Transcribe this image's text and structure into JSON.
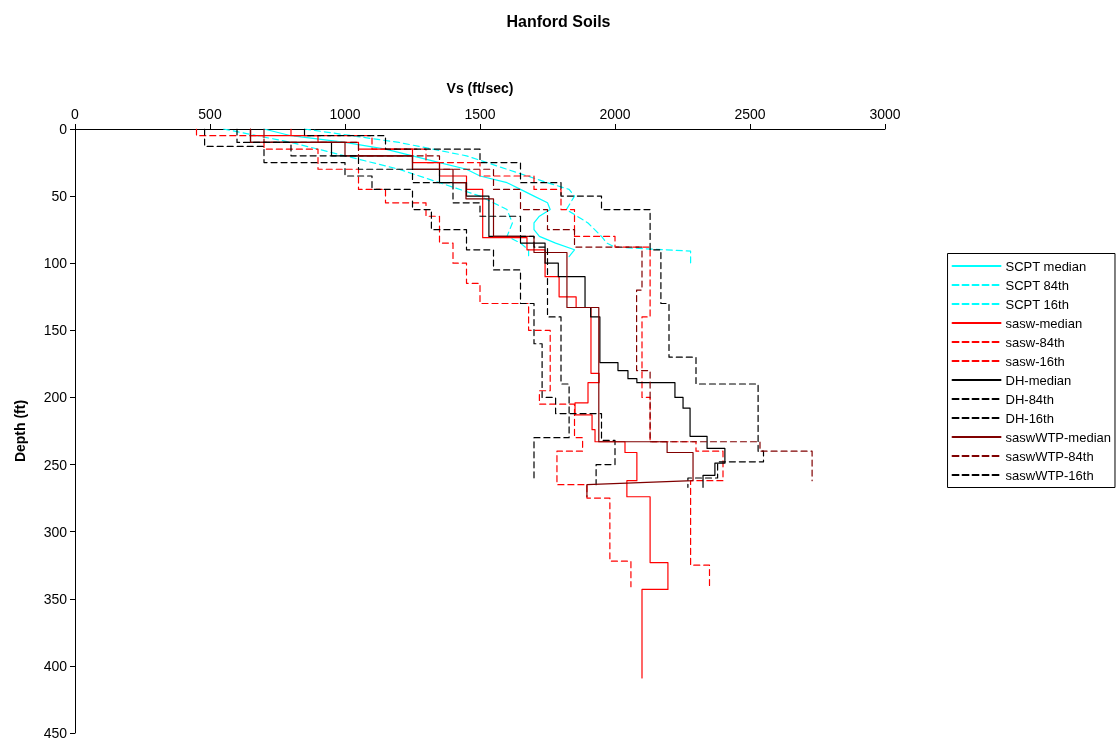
{
  "chart_data": {
    "type": "line",
    "title": "Hanford Soils",
    "xlabel": "Vs (ft/sec)",
    "ylabel": "Depth (ft)",
    "xlim": [
      0,
      3000
    ],
    "xticks": [
      0,
      500,
      1000,
      1500,
      2000,
      2500,
      3000
    ],
    "ylim": [
      450,
      0
    ],
    "yticks": [
      0,
      50,
      100,
      150,
      200,
      250,
      300,
      350,
      400,
      450
    ],
    "grid": false,
    "legend": "right",
    "marker": "none",
    "series": [
      {
        "name": "SCPT median",
        "color": "#00ffff",
        "line_style": "solid",
        "x": [
          700,
          800,
          1000,
          1150,
          1250,
          1350,
          1450,
          1500,
          1600,
          1650,
          1700,
          1750,
          1760,
          1720,
          1700,
          1700,
          1720,
          1780,
          1850,
          1830
        ],
        "values": [
          0,
          5,
          10,
          15,
          20,
          25,
          30,
          35,
          40,
          45,
          50,
          55,
          60,
          65,
          70,
          75,
          80,
          85,
          90,
          95
        ]
      },
      {
        "name": "SCPT 84th",
        "color": "#00ffff",
        "line_style": "dashed",
        "x": [
          850,
          1200,
          1450,
          1600,
          1750,
          1830,
          1850,
          1820,
          1900,
          1950,
          1970,
          2000,
          2280,
          2280
        ],
        "values": [
          0,
          10,
          20,
          30,
          40,
          45,
          50,
          60,
          70,
          80,
          85,
          88,
          91,
          100
        ]
      },
      {
        "name": "SCPT 16th",
        "color": "#00ffff",
        "line_style": "dashed",
        "x": [
          550,
          800,
          1000,
          1200,
          1350,
          1500,
          1600,
          1620,
          1600,
          1650,
          1680,
          1680
        ],
        "values": [
          0,
          10,
          20,
          30,
          40,
          50,
          60,
          70,
          80,
          85,
          90,
          97
        ]
      },
      {
        "name": "sasw-median",
        "color": "#ff0000",
        "line_style": "solid",
        "x": [
          650,
          650,
          900,
          900,
          1050,
          1050,
          1250,
          1250,
          1350,
          1350,
          1450,
          1450,
          1510,
          1510,
          1674,
          1674,
          1741,
          1741,
          1793,
          1793,
          1856,
          1856,
          1911,
          1911,
          1941,
          1941,
          1900,
          1900,
          1852,
          1852,
          1915,
          1915,
          1926,
          1926,
          2037,
          2037,
          2081,
          2081,
          2044,
          2044,
          2130,
          2130,
          2196,
          2196,
          2100,
          2100
        ],
        "values": [
          0,
          5,
          5,
          10,
          10,
          15,
          15,
          25,
          25,
          35,
          35,
          45,
          45,
          81,
          81,
          90,
          90,
          110,
          110,
          125,
          125,
          133,
          133,
          182,
          182,
          189,
          189,
          204,
          204,
          213,
          213,
          224,
          224,
          233,
          233,
          241,
          241,
          262,
          262,
          274,
          274,
          323,
          323,
          343,
          343,
          409
        ]
      },
      {
        "name": "sasw-84th",
        "color": "#ff0000",
        "line_style": "dashed",
        "x": [
          800,
          800,
          1100,
          1100,
          1300,
          1300,
          1500,
          1500,
          1700,
          1700,
          1800,
          1800,
          1850,
          1850,
          2000,
          2000,
          2130,
          2130,
          2100,
          2100,
          2130,
          2130,
          2300,
          2300,
          2400,
          2400,
          2280,
          2280,
          2350,
          2350
        ],
        "values": [
          0,
          5,
          5,
          15,
          15,
          25,
          25,
          35,
          35,
          45,
          45,
          60,
          60,
          80,
          80,
          88,
          88,
          140,
          140,
          200,
          200,
          233,
          233,
          240,
          240,
          262,
          262,
          325,
          325,
          343
        ]
      },
      {
        "name": "sasw-16th",
        "color": "#ff0000",
        "line_style": "dashed",
        "x": [
          450,
          450,
          700,
          700,
          900,
          900,
          1050,
          1050,
          1150,
          1150,
          1300,
          1300,
          1350,
          1350,
          1400,
          1400,
          1450,
          1450,
          1500,
          1500,
          1680,
          1680,
          1760,
          1760,
          1720,
          1720,
          1850,
          1850,
          1880,
          1880,
          1785,
          1785,
          1896,
          1896,
          1981,
          1981,
          2059,
          2059
        ],
        "values": [
          0,
          5,
          5,
          15,
          15,
          30,
          30,
          45,
          45,
          55,
          55,
          65,
          65,
          85,
          85,
          100,
          100,
          115,
          115,
          130,
          130,
          150,
          150,
          195,
          195,
          205,
          205,
          230,
          230,
          240,
          240,
          265,
          265,
          275,
          275,
          322,
          322,
          341
        ]
      },
      {
        "name": "DH-median",
        "color": "#000000",
        "line_style": "solid",
        "x": [
          650,
          650,
          950,
          950,
          1250,
          1250,
          1350,
          1350,
          1450,
          1450,
          1533,
          1533,
          1650,
          1650,
          1741,
          1741,
          1790,
          1790,
          1889,
          1889,
          1910,
          1910,
          1944,
          1944,
          2011,
          2011,
          2048,
          2048,
          2081,
          2081,
          2222,
          2222,
          2252,
          2252,
          2278,
          2278,
          2341,
          2341,
          2407,
          2407,
          2370,
          2370,
          2326,
          2326
        ],
        "values": [
          0,
          10,
          10,
          20,
          20,
          30,
          30,
          40,
          40,
          50,
          50,
          80,
          80,
          85,
          85,
          100,
          100,
          110,
          110,
          133,
          133,
          140,
          140,
          174,
          174,
          180,
          180,
          186,
          186,
          189,
          189,
          200,
          200,
          208,
          208,
          229,
          229,
          238,
          238,
          249,
          249,
          258,
          258,
          267
        ]
      },
      {
        "name": "DH-84th",
        "color": "#000000",
        "line_style": "dashed",
        "x": [
          850,
          850,
          1150,
          1150,
          1500,
          1500,
          1650,
          1650,
          1800,
          1800,
          1950,
          1950,
          2130,
          2130,
          2170,
          2170,
          2200,
          2200,
          2300,
          2300,
          2530,
          2530,
          2550,
          2550,
          2380,
          2380,
          2270,
          2270
        ],
        "values": [
          0,
          5,
          5,
          15,
          15,
          25,
          25,
          40,
          40,
          50,
          50,
          60,
          60,
          90,
          90,
          130,
          130,
          170,
          170,
          190,
          190,
          240,
          240,
          248,
          248,
          260,
          260,
          267
        ]
      },
      {
        "name": "DH-16th",
        "color": "#000000",
        "line_style": "dashed",
        "x": [
          480,
          480,
          700,
          700,
          1000,
          1000,
          1100,
          1100,
          1250,
          1250,
          1320,
          1320,
          1450,
          1450,
          1550,
          1550,
          1650,
          1650,
          1700,
          1700,
          1730,
          1730,
          1780,
          1780,
          1950,
          1950,
          2000,
          2000,
          1930,
          1930
        ],
        "values": [
          0,
          13,
          13,
          25,
          25,
          35,
          35,
          45,
          45,
          60,
          60,
          75,
          75,
          90,
          90,
          105,
          105,
          130,
          130,
          160,
          160,
          200,
          200,
          212,
          212,
          232,
          232,
          250,
          250,
          265
        ]
      },
      {
        "name": "saswWTP-median",
        "color": "#800000",
        "line_style": "solid",
        "x": [
          650,
          650,
          1000,
          1000,
          1250,
          1250,
          1400,
          1400,
          1448,
          1448,
          1550,
          1550,
          1700,
          1700,
          1822,
          1822,
          1940,
          1940,
          2193,
          2193,
          2289,
          2289,
          1896,
          1896
        ],
        "values": [
          0,
          10,
          10,
          20,
          20,
          30,
          30,
          40,
          40,
          52,
          52,
          80,
          80,
          92,
          92,
          133,
          133,
          233,
          233,
          241,
          241,
          262,
          265,
          274
        ]
      },
      {
        "name": "saswWTP-84th",
        "color": "#800000",
        "line_style": "dashed",
        "x": [
          700,
          700,
          1050,
          1050,
          1350,
          1350,
          1550,
          1550,
          1650,
          1650,
          1750,
          1750,
          1850,
          1850,
          2100,
          2100,
          2080,
          2080,
          2130,
          2130,
          2537,
          2537,
          2730,
          2730
        ],
        "values": [
          0,
          10,
          10,
          20,
          20,
          30,
          30,
          45,
          45,
          60,
          60,
          75,
          75,
          88,
          88,
          120,
          120,
          180,
          180,
          233,
          233,
          240,
          240,
          262
        ]
      },
      {
        "name": "saswWTP-16th",
        "color": "#000000",
        "line_style": "dashed",
        "x": [
          600,
          600,
          800,
          800,
          1050,
          1050,
          1250,
          1250,
          1400,
          1400,
          1500,
          1500,
          1650,
          1650,
          1700,
          1700,
          1750,
          1750,
          1800,
          1800,
          1830,
          1830,
          1700,
          1700
        ],
        "values": [
          0,
          10,
          10,
          20,
          20,
          30,
          30,
          40,
          40,
          55,
          55,
          65,
          65,
          80,
          80,
          88,
          88,
          140,
          140,
          190,
          190,
          230,
          230,
          262
        ]
      }
    ]
  }
}
